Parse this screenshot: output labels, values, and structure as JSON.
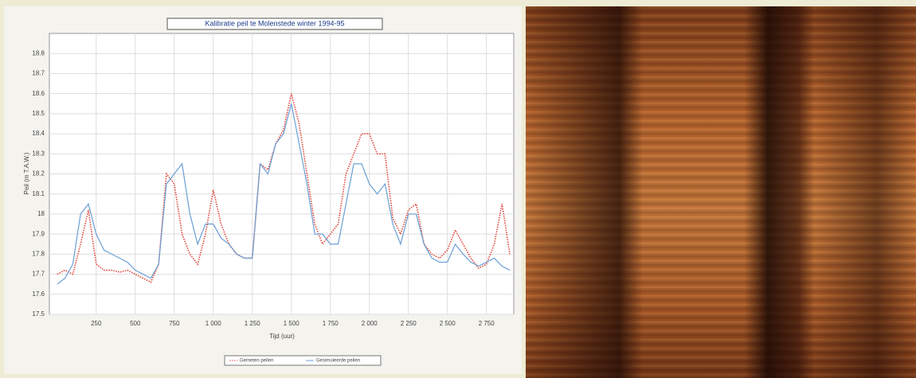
{
  "chart_data": {
    "type": "line",
    "title": "Kalibratie peil te Molenstede winter 1994-95",
    "x_label": "Tijd (uur)",
    "y_label": "Peil (m T.A.W.)",
    "x": [
      0,
      50,
      100,
      150,
      200,
      250,
      300,
      350,
      400,
      450,
      500,
      550,
      600,
      650,
      700,
      750,
      800,
      850,
      900,
      950,
      1000,
      1050,
      1100,
      1150,
      1200,
      1250,
      1300,
      1350,
      1400,
      1450,
      1500,
      1550,
      1600,
      1650,
      1700,
      1750,
      1800,
      1850,
      1900,
      1950,
      2000,
      2050,
      2100,
      2150,
      2200,
      2250,
      2300,
      2350,
      2400,
      2450,
      2500,
      2550,
      2600,
      2650,
      2700,
      2750,
      2800,
      2850,
      2900
    ],
    "series": [
      {
        "name": "Gemeten peilen",
        "color": "#e0443a",
        "dashed": true,
        "values": [
          17.7,
          17.72,
          17.7,
          17.85,
          18.02,
          17.75,
          17.72,
          17.72,
          17.71,
          17.72,
          17.7,
          17.68,
          17.66,
          17.75,
          18.2,
          18.15,
          17.9,
          17.8,
          17.75,
          17.9,
          18.12,
          17.95,
          17.85,
          17.8,
          17.78,
          17.78,
          18.25,
          18.22,
          18.35,
          18.42,
          18.6,
          18.45,
          18.2,
          17.95,
          17.85,
          17.9,
          17.95,
          18.2,
          18.3,
          18.4,
          18.4,
          18.3,
          18.3,
          17.98,
          17.9,
          18.02,
          18.05,
          17.85,
          17.8,
          17.78,
          17.82,
          17.92,
          17.85,
          17.78,
          17.73,
          17.75,
          17.85,
          18.05,
          17.8
        ]
      },
      {
        "name": "Gesimuleerde peilen",
        "color": "#6a9fd6",
        "dashed": false,
        "values": [
          17.65,
          17.68,
          17.75,
          18.0,
          18.05,
          17.9,
          17.82,
          17.8,
          17.78,
          17.76,
          17.72,
          17.7,
          17.68,
          17.75,
          18.15,
          18.2,
          18.25,
          18.0,
          17.85,
          17.95,
          17.95,
          17.88,
          17.85,
          17.8,
          17.78,
          17.78,
          18.25,
          18.2,
          18.35,
          18.4,
          18.55,
          18.35,
          18.15,
          17.9,
          17.9,
          17.85,
          17.85,
          18.05,
          18.25,
          18.25,
          18.15,
          18.1,
          18.15,
          17.95,
          17.85,
          18.0,
          18.0,
          17.85,
          17.78,
          17.76,
          17.76,
          17.85,
          17.8,
          17.76,
          17.74,
          17.76,
          17.78,
          17.74,
          17.72
        ]
      }
    ],
    "xlim": [
      -50,
      2925
    ],
    "xticks": [
      250,
      500,
      750,
      {
        "value": 1000,
        "label": "1 000"
      },
      {
        "value": 1250,
        "label": "1 250"
      },
      {
        "value": 1500,
        "label": "1 500"
      },
      {
        "value": 1750,
        "label": "1 750"
      },
      {
        "value": 2000,
        "label": "2 000"
      },
      {
        "value": 2250,
        "label": "2 250"
      },
      {
        "value": 2500,
        "label": "2 500"
      },
      {
        "value": 2750,
        "label": "2 750"
      }
    ],
    "ylim": [
      17.5,
      18.9
    ],
    "yticks": [
      17.5,
      17.6,
      17.7,
      17.8,
      17.9,
      18,
      18.1,
      18.2,
      18.3,
      18.4,
      18.5,
      18.6,
      18.7,
      18.8
    ],
    "grid": true
  }
}
